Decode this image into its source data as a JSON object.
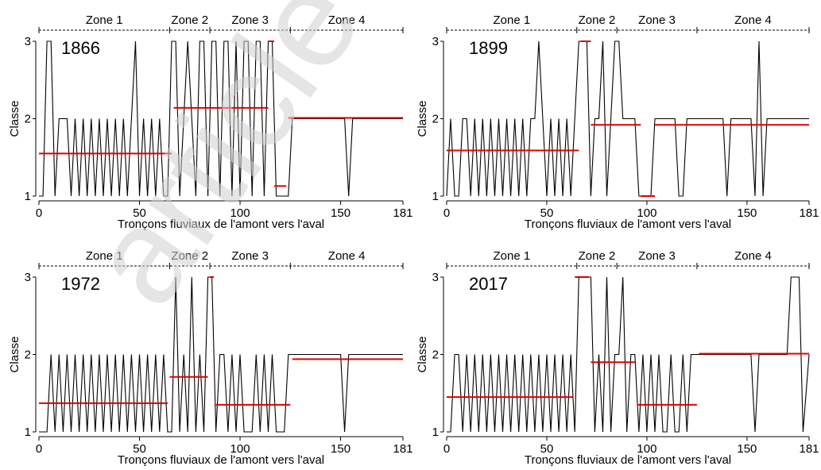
{
  "watermark": "article",
  "chart_data": [
    {
      "type": "line",
      "year_label": "1866",
      "xlabel": "Tronçons fluviaux de l'amont vers l'aval",
      "ylabel": "Classe",
      "xlim": [
        0,
        181
      ],
      "ylim": [
        1,
        3
      ],
      "xticks": [
        0,
        50,
        100,
        150,
        181
      ],
      "yticks": [
        1,
        2,
        3
      ],
      "zones": [
        {
          "label": "Zone 1",
          "start": 0,
          "end": 65
        },
        {
          "label": "Zone 2",
          "start": 65,
          "end": 85
        },
        {
          "label": "Zone 3",
          "start": 85,
          "end": 125
        },
        {
          "label": "Zone 4",
          "start": 125,
          "end": 181
        }
      ],
      "series": [
        {
          "color": "#000000",
          "x": [
            0,
            2,
            4,
            6,
            8,
            10,
            12,
            14,
            16,
            18,
            20,
            22,
            24,
            26,
            28,
            30,
            32,
            34,
            36,
            38,
            40,
            42,
            44,
            46,
            48,
            50,
            52,
            54,
            56,
            58,
            60,
            62,
            64,
            66,
            68,
            70,
            72,
            74,
            76,
            78,
            80,
            82,
            84,
            86,
            88,
            90,
            92,
            94,
            96,
            98,
            100,
            102,
            104,
            106,
            108,
            110,
            112,
            114,
            116,
            118,
            120,
            122,
            124,
            126,
            128,
            130,
            132,
            134,
            136,
            138,
            140,
            142,
            144,
            146,
            148,
            150,
            152,
            154,
            156,
            158,
            160,
            162,
            164,
            166,
            168,
            170,
            172,
            174,
            176,
            178,
            181
          ],
          "values": [
            1,
            1,
            3,
            3,
            1,
            2,
            2,
            2,
            1,
            2,
            1,
            2,
            1,
            2,
            1,
            2,
            1,
            2,
            1,
            2,
            1,
            2,
            1,
            2,
            3,
            1,
            2,
            1,
            2,
            1,
            2,
            1,
            1,
            3,
            3,
            1,
            2,
            3,
            2,
            1,
            3,
            3,
            1,
            3,
            3,
            1,
            3,
            3,
            1,
            3,
            1,
            3,
            3,
            1,
            3,
            3,
            1,
            3,
            3,
            1,
            1,
            1,
            1,
            2,
            2,
            2,
            2,
            2,
            2,
            2,
            2,
            2,
            2,
            2,
            2,
            2,
            2,
            1,
            2,
            2,
            2,
            2,
            2,
            2,
            2,
            2,
            2,
            2,
            2,
            2,
            2
          ]
        },
        {
          "color": "#e00000",
          "segments": [
            {
              "x": [
                0,
                66
              ],
              "y": 1.55
            },
            {
              "x": [
                67,
                114
              ],
              "y": 2.14
            },
            {
              "x": [
                114,
                117
              ],
              "y": 3.0
            },
            {
              "x": [
                117,
                123
              ],
              "y": 1.13
            },
            {
              "x": [
                124,
                181
              ],
              "y": 2.01
            }
          ]
        }
      ]
    },
    {
      "type": "line",
      "year_label": "1899",
      "xlabel": "Tronçons fluviaux de l'amont vers l'aval",
      "ylabel": "Classe",
      "xlim": [
        0,
        181
      ],
      "ylim": [
        1,
        3
      ],
      "xticks": [
        0,
        50,
        100,
        150,
        181
      ],
      "yticks": [
        1,
        2,
        3
      ],
      "zones": [
        {
          "label": "Zone 1",
          "start": 0,
          "end": 65
        },
        {
          "label": "Zone 2",
          "start": 65,
          "end": 85
        },
        {
          "label": "Zone 3",
          "start": 85,
          "end": 125
        },
        {
          "label": "Zone 4",
          "start": 125,
          "end": 181
        }
      ],
      "series": [
        {
          "color": "#000000",
          "x": [
            0,
            2,
            4,
            6,
            8,
            10,
            12,
            14,
            16,
            18,
            20,
            22,
            24,
            26,
            28,
            30,
            32,
            34,
            36,
            38,
            40,
            42,
            44,
            46,
            48,
            50,
            52,
            54,
            56,
            58,
            60,
            62,
            64,
            66,
            68,
            70,
            72,
            74,
            76,
            78,
            80,
            82,
            84,
            86,
            88,
            90,
            92,
            94,
            96,
            98,
            100,
            102,
            104,
            106,
            108,
            110,
            112,
            114,
            116,
            118,
            120,
            122,
            124,
            126,
            128,
            130,
            132,
            134,
            136,
            138,
            140,
            142,
            144,
            146,
            148,
            150,
            152,
            154,
            156,
            158,
            160,
            162,
            164,
            166,
            168,
            170,
            172,
            174,
            176,
            178,
            181
          ],
          "values": [
            1,
            2,
            1,
            1,
            2,
            2,
            1,
            2,
            1,
            2,
            1,
            2,
            1,
            2,
            1,
            2,
            1,
            2,
            1,
            2,
            1,
            2,
            2,
            3,
            2,
            1,
            2,
            1,
            2,
            1,
            2,
            1,
            2,
            3,
            3,
            3,
            1,
            2,
            2,
            3,
            1,
            2,
            3,
            3,
            2,
            2,
            2,
            2,
            1,
            1,
            1,
            1,
            2,
            2,
            2,
            2,
            2,
            2,
            1,
            1,
            2,
            2,
            2,
            2,
            2,
            2,
            2,
            2,
            2,
            2,
            1,
            2,
            2,
            2,
            2,
            2,
            2,
            1,
            3,
            1,
            2,
            2,
            2,
            2,
            2,
            2,
            2,
            2,
            2,
            2,
            2
          ]
        },
        {
          "color": "#e00000",
          "segments": [
            {
              "x": [
                0,
                66
              ],
              "y": 1.59
            },
            {
              "x": [
                67,
                72
              ],
              "y": 3.0
            },
            {
              "x": [
                72,
                97
              ],
              "y": 1.92
            },
            {
              "x": [
                97,
                104
              ],
              "y": 1.0
            },
            {
              "x": [
                104,
                181
              ],
              "y": 1.92
            }
          ]
        }
      ]
    },
    {
      "type": "line",
      "year_label": "1972",
      "xlabel": "Tronçons fluviaux de l'amont vers l'aval",
      "ylabel": "Classe",
      "xlim": [
        0,
        181
      ],
      "ylim": [
        1,
        3
      ],
      "xticks": [
        0,
        50,
        100,
        150,
        181
      ],
      "yticks": [
        1,
        2,
        3
      ],
      "zones": [
        {
          "label": "Zone 1",
          "start": 0,
          "end": 65
        },
        {
          "label": "Zone 2",
          "start": 65,
          "end": 85
        },
        {
          "label": "Zone 3",
          "start": 85,
          "end": 125
        },
        {
          "label": "Zone 4",
          "start": 125,
          "end": 181
        }
      ],
      "series": [
        {
          "color": "#000000",
          "x": [
            0,
            2,
            4,
            6,
            8,
            10,
            12,
            14,
            16,
            18,
            20,
            22,
            24,
            26,
            28,
            30,
            32,
            34,
            36,
            38,
            40,
            42,
            44,
            46,
            48,
            50,
            52,
            54,
            56,
            58,
            60,
            62,
            64,
            66,
            68,
            70,
            72,
            74,
            76,
            78,
            80,
            82,
            84,
            86,
            88,
            90,
            92,
            94,
            96,
            98,
            100,
            102,
            104,
            106,
            108,
            110,
            112,
            114,
            116,
            118,
            120,
            122,
            124,
            126,
            128,
            130,
            132,
            134,
            136,
            138,
            140,
            142,
            144,
            146,
            148,
            150,
            152,
            154,
            156,
            158,
            160,
            162,
            164,
            166,
            168,
            170,
            172,
            174,
            176,
            178,
            181
          ],
          "values": [
            1,
            1,
            1,
            2,
            1,
            2,
            1,
            2,
            1,
            2,
            1,
            2,
            1,
            2,
            1,
            2,
            1,
            2,
            1,
            2,
            1,
            2,
            1,
            2,
            1,
            2,
            1,
            2,
            1,
            2,
            1,
            2,
            1,
            1,
            3,
            1,
            2,
            1,
            3,
            1,
            2,
            1,
            3,
            3,
            1,
            2,
            2,
            1,
            2,
            1,
            2,
            1,
            1,
            1,
            2,
            1,
            2,
            1,
            2,
            1,
            1,
            1,
            2,
            2,
            2,
            2,
            2,
            2,
            2,
            2,
            2,
            2,
            2,
            2,
            2,
            2,
            1,
            2,
            2,
            2,
            2,
            2,
            2,
            2,
            2,
            2,
            2,
            2,
            2,
            2,
            2
          ]
        },
        {
          "color": "#e00000",
          "segments": [
            {
              "x": [
                0,
                64
              ],
              "y": 1.37
            },
            {
              "x": [
                65,
                84
              ],
              "y": 1.71
            },
            {
              "x": [
                85,
                87
              ],
              "y": 3.0
            },
            {
              "x": [
                88,
                125
              ],
              "y": 1.35
            },
            {
              "x": [
                126,
                181
              ],
              "y": 1.94
            }
          ]
        }
      ]
    },
    {
      "type": "line",
      "year_label": "2017",
      "xlabel": "Tronçons fluviaux de l'amont vers l'aval",
      "ylabel": "Classe",
      "xlim": [
        0,
        181
      ],
      "ylim": [
        1,
        3
      ],
      "xticks": [
        0,
        50,
        100,
        150,
        181
      ],
      "yticks": [
        1,
        2,
        3
      ],
      "zones": [
        {
          "label": "Zone 1",
          "start": 0,
          "end": 65
        },
        {
          "label": "Zone 2",
          "start": 65,
          "end": 85
        },
        {
          "label": "Zone 3",
          "start": 85,
          "end": 125
        },
        {
          "label": "Zone 4",
          "start": 125,
          "end": 181
        }
      ],
      "series": [
        {
          "color": "#000000",
          "x": [
            0,
            2,
            4,
            6,
            8,
            10,
            12,
            14,
            16,
            18,
            20,
            22,
            24,
            26,
            28,
            30,
            32,
            34,
            36,
            38,
            40,
            42,
            44,
            46,
            48,
            50,
            52,
            54,
            56,
            58,
            60,
            62,
            64,
            66,
            68,
            70,
            72,
            74,
            76,
            78,
            80,
            82,
            84,
            86,
            88,
            90,
            92,
            94,
            96,
            98,
            100,
            102,
            104,
            106,
            108,
            110,
            112,
            114,
            116,
            118,
            120,
            122,
            124,
            126,
            128,
            130,
            132,
            134,
            136,
            138,
            140,
            142,
            144,
            146,
            148,
            150,
            152,
            154,
            156,
            158,
            160,
            162,
            164,
            166,
            168,
            170,
            172,
            174,
            176,
            178,
            181
          ],
          "values": [
            1,
            1,
            2,
            2,
            1,
            2,
            1,
            2,
            1,
            2,
            1,
            2,
            1,
            2,
            1,
            2,
            1,
            2,
            1,
            2,
            1,
            2,
            1,
            2,
            1,
            2,
            1,
            2,
            1,
            2,
            1,
            2,
            1,
            3,
            3,
            3,
            3,
            1,
            2,
            1,
            3,
            1,
            2,
            2,
            3,
            1,
            2,
            2,
            1,
            2,
            1,
            2,
            1,
            2,
            1,
            1,
            2,
            1,
            1,
            2,
            1,
            2,
            2,
            2,
            2,
            2,
            2,
            2,
            2,
            2,
            2,
            2,
            2,
            2,
            2,
            2,
            2,
            1,
            2,
            2,
            2,
            2,
            2,
            2,
            2,
            2,
            3,
            3,
            3,
            1,
            2
          ]
        },
        {
          "color": "#e00000",
          "segments": [
            {
              "x": [
                0,
                63
              ],
              "y": 1.45
            },
            {
              "x": [
                64,
                71
              ],
              "y": 3.0
            },
            {
              "x": [
                72,
                94
              ],
              "y": 1.9
            },
            {
              "x": [
                95,
                125
              ],
              "y": 1.35
            },
            {
              "x": [
                126,
                181
              ],
              "y": 2.01
            }
          ]
        }
      ]
    }
  ]
}
